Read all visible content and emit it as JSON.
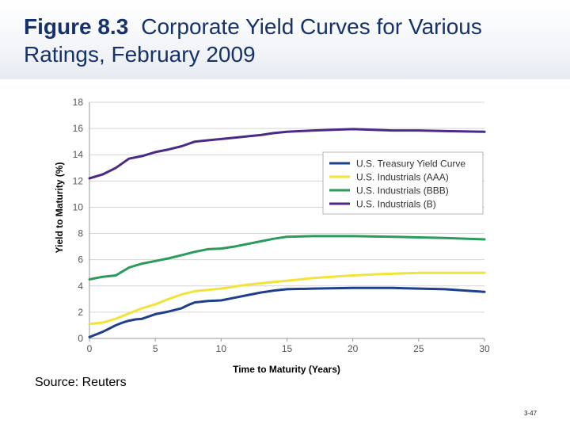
{
  "slide": {
    "figure_label": "Figure 8.3",
    "title_text": "Corporate Yield Curves for Various Ratings, February 2009",
    "source": "Source: Reuters",
    "page_number": "3-47"
  },
  "chart_data": {
    "type": "line",
    "title": "Corporate Yield Curves for Various Ratings, February 2009",
    "xlabel": "Time to Maturity (Years)",
    "ylabel": "Yield to Maturity (%)",
    "xlim": [
      0,
      30
    ],
    "ylim": [
      0,
      18
    ],
    "xticks": [
      0,
      5,
      10,
      15,
      20,
      25,
      30
    ],
    "yticks": [
      0,
      2,
      4,
      6,
      8,
      10,
      12,
      14,
      16,
      18
    ],
    "grid": "horizontal",
    "legend_position": "right-middle",
    "series": [
      {
        "name": "U.S. Treasury Yield Curve",
        "color": "#1f3f8a",
        "x": [
          0,
          0.5,
          1,
          1.5,
          2,
          2.5,
          3,
          3.5,
          4,
          5,
          6,
          7,
          7.5,
          8,
          9,
          10,
          11,
          12,
          13,
          14,
          15,
          17,
          20,
          23,
          25,
          27,
          30
        ],
        "y": [
          0.1,
          0.3,
          0.5,
          0.75,
          1.0,
          1.2,
          1.35,
          1.45,
          1.5,
          1.85,
          2.05,
          2.3,
          2.55,
          2.75,
          2.85,
          2.9,
          3.1,
          3.3,
          3.5,
          3.65,
          3.75,
          3.8,
          3.85,
          3.85,
          3.8,
          3.75,
          3.55
        ]
      },
      {
        "name": "U.S. Industrials (AAA)",
        "color": "#f2e33a",
        "x": [
          0,
          1,
          2,
          3,
          4,
          5,
          6,
          7,
          8,
          9,
          10,
          11,
          12,
          13,
          14,
          15,
          17,
          20,
          22,
          25,
          27,
          30
        ],
        "y": [
          1.1,
          1.2,
          1.5,
          1.9,
          2.3,
          2.6,
          3.0,
          3.35,
          3.6,
          3.7,
          3.8,
          3.95,
          4.1,
          4.2,
          4.3,
          4.4,
          4.6,
          4.8,
          4.9,
          5.0,
          5.0,
          5.0
        ]
      },
      {
        "name": "U.S. Industrials (BBB)",
        "color": "#2b9a5a",
        "x": [
          0,
          1,
          2,
          2.5,
          3,
          4,
          5,
          6,
          7,
          8,
          9,
          10,
          11,
          12,
          13,
          14,
          15,
          17,
          20,
          23,
          25,
          27,
          30
        ],
        "y": [
          4.5,
          4.7,
          4.8,
          5.1,
          5.4,
          5.7,
          5.9,
          6.1,
          6.35,
          6.6,
          6.8,
          6.85,
          7.0,
          7.2,
          7.4,
          7.6,
          7.75,
          7.8,
          7.8,
          7.75,
          7.7,
          7.65,
          7.55
        ]
      },
      {
        "name": "U.S. Industrials (B)",
        "color": "#4b2a87",
        "x": [
          0,
          1,
          2,
          3,
          4,
          5,
          6,
          7,
          8,
          9,
          10,
          11,
          12,
          13,
          14,
          15,
          17,
          20,
          23,
          25,
          27,
          30
        ],
        "y": [
          12.2,
          12.5,
          13.0,
          13.7,
          13.9,
          14.2,
          14.4,
          14.65,
          15.0,
          15.1,
          15.2,
          15.3,
          15.4,
          15.5,
          15.65,
          15.75,
          15.85,
          15.95,
          15.85,
          15.85,
          15.8,
          15.75
        ]
      }
    ]
  }
}
